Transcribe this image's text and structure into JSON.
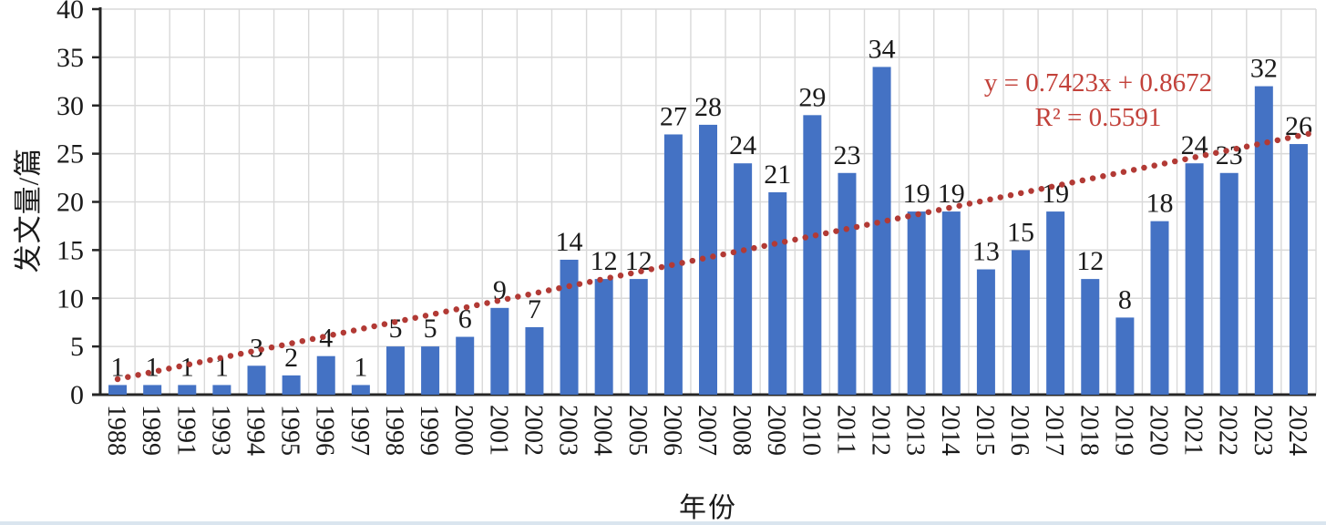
{
  "chart_data": {
    "type": "bar",
    "title": "",
    "xlabel": "年份",
    "ylabel": "发文量/篇",
    "categories": [
      "1988",
      "1989",
      "1991",
      "1993",
      "1994",
      "1995",
      "1996",
      "1997",
      "1998",
      "1999",
      "2000",
      "2001",
      "2002",
      "2003",
      "2004",
      "2005",
      "2006",
      "2007",
      "2008",
      "2009",
      "2010",
      "2011",
      "2012",
      "2013",
      "2014",
      "2015",
      "2016",
      "2017",
      "2018",
      "2019",
      "2020",
      "2021",
      "2022",
      "2023",
      "2024"
    ],
    "values": [
      1,
      1,
      1,
      1,
      3,
      2,
      4,
      1,
      5,
      5,
      6,
      9,
      7,
      14,
      12,
      12,
      27,
      28,
      24,
      21,
      29,
      23,
      34,
      19,
      19,
      13,
      15,
      19,
      12,
      8,
      18,
      24,
      23,
      32,
      26
    ],
    "ylim": [
      0,
      40
    ],
    "yticks": [
      0,
      5,
      10,
      15,
      20,
      25,
      30,
      35,
      40
    ],
    "grid": true,
    "legend": "none",
    "value_labels": true,
    "colors": {
      "bar": "#4472C4",
      "trendline": "#B23A35",
      "equation_text": "#C2413A",
      "grid": "#D9D9D9",
      "axis": "#262626",
      "text": "#1A1A1A"
    },
    "trendline": {
      "style": "dotted",
      "slope": 0.7423,
      "intercept": 0.8672,
      "equation_label": "y = 0.7423x + 0.8672",
      "r2_label": "R² = 0.5591"
    }
  }
}
